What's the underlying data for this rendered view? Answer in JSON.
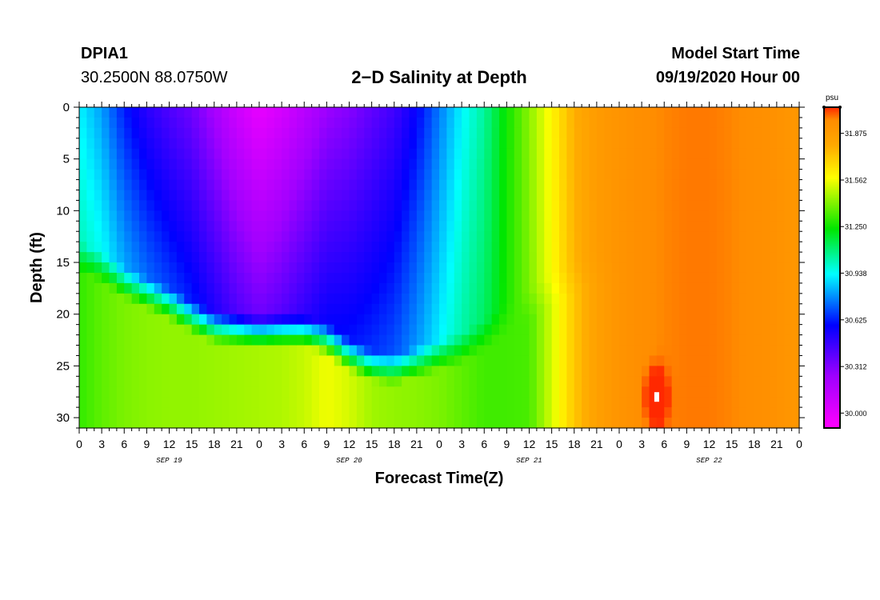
{
  "header": {
    "station_id": "DPIA1",
    "coordinates": "30.2500N 88.0750W",
    "title": "2−D Salinity at Depth",
    "model_start_label": "Model Start Time",
    "model_start_value": "09/19/2020 Hour 00"
  },
  "chart_data": {
    "type": "heatmap",
    "title": "2−D Salinity at Depth",
    "xlabel": "Forecast Time(Z)",
    "ylabel": "Depth (ft)",
    "x_range_hours": [
      0,
      96
    ],
    "ylim": [
      31,
      0
    ],
    "x_tick_labels": [
      "0",
      "3",
      "6",
      "9",
      "12",
      "15",
      "18",
      "21",
      "0",
      "3",
      "6",
      "9",
      "12",
      "15",
      "18",
      "21",
      "0",
      "3",
      "6",
      "9",
      "12",
      "15",
      "18",
      "21",
      "0",
      "3",
      "6",
      "9",
      "12",
      "15",
      "18",
      "21",
      "0"
    ],
    "y_ticks": [
      0,
      5,
      10,
      15,
      20,
      25,
      30
    ],
    "date_labels": [
      {
        "hour": 12,
        "label": "SEP 19"
      },
      {
        "hour": 36,
        "label": "SEP 20"
      },
      {
        "hour": 60,
        "label": "SEP 21"
      },
      {
        "hour": 84,
        "label": "SEP 22"
      }
    ],
    "colorbar": {
      "unit": "psu",
      "min": 29.9,
      "max": 32.05,
      "tick_values": [
        30.0,
        30.312,
        30.625,
        30.938,
        31.25,
        31.562,
        31.875
      ],
      "tick_labels": [
        "30.000",
        "30.312",
        "30.625",
        "30.938",
        "31.250",
        "31.562",
        "31.875"
      ]
    },
    "profile_hours": [
      0,
      3,
      6,
      9,
      12,
      15,
      18,
      21,
      24,
      27,
      30,
      33,
      36,
      39,
      42,
      45,
      48,
      51,
      54,
      57,
      60,
      63,
      66,
      69,
      72,
      75,
      78,
      81,
      84,
      87,
      90,
      93,
      96
    ],
    "surface_salinity": [
      30.92,
      30.8,
      30.62,
      30.5,
      30.42,
      30.35,
      30.22,
      30.08,
      29.98,
      30.05,
      30.15,
      30.25,
      30.3,
      30.38,
      30.45,
      30.58,
      30.75,
      30.92,
      31.05,
      31.25,
      31.42,
      31.6,
      31.78,
      31.88,
      31.92,
      31.95,
      31.97,
      31.98,
      31.98,
      31.97,
      31.95,
      31.93,
      31.9
    ],
    "bottom_salinity": [
      31.3,
      31.36,
      31.4,
      31.42,
      31.43,
      31.43,
      31.44,
      31.45,
      31.46,
      31.47,
      31.5,
      31.56,
      31.52,
      31.45,
      31.43,
      31.42,
      31.4,
      31.36,
      31.32,
      31.32,
      31.33,
      31.52,
      31.72,
      31.85,
      31.92,
      31.95,
      31.97,
      31.98,
      31.98,
      31.97,
      31.95,
      31.93,
      31.9
    ],
    "halocline_depth_ft": [
      13.0,
      14.0,
      15.5,
      16.5,
      17.5,
      18.8,
      19.8,
      20.0,
      20.2,
      20.1,
      20.2,
      21.0,
      22.5,
      23.5,
      23.8,
      23.2,
      22.5,
      21.8,
      20.5,
      19.0,
      17.5,
      16.0,
      15.0,
      14.0,
      14.0,
      14.0,
      14.0,
      14.0,
      14.0,
      14.0,
      14.0,
      14.0,
      14.0
    ],
    "anomaly": {
      "hour": 77,
      "depth_ft": 28,
      "salinity": 32.3
    }
  }
}
